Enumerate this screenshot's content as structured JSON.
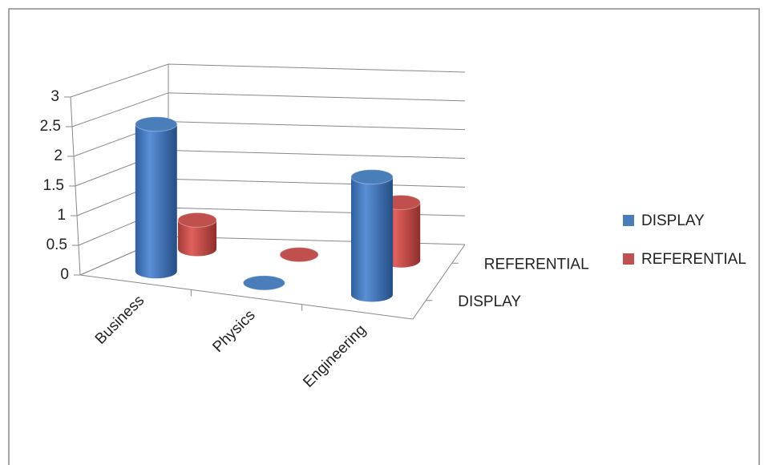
{
  "chart_data": {
    "type": "bar",
    "categories": [
      "Business",
      "Physics",
      "Engineering"
    ],
    "series": [
      {
        "name": "DISPLAY",
        "color": "#4a7ebb",
        "values": [
          2.5,
          0,
          2
        ]
      },
      {
        "name": "REFERENTIAL",
        "color": "#c0504d",
        "values": [
          0.5,
          0,
          1
        ]
      }
    ],
    "ylim": [
      0,
      3
    ],
    "yticks": [
      0,
      0.5,
      1,
      1.5,
      2,
      2.5,
      3
    ],
    "grid": true,
    "legend": "right"
  }
}
